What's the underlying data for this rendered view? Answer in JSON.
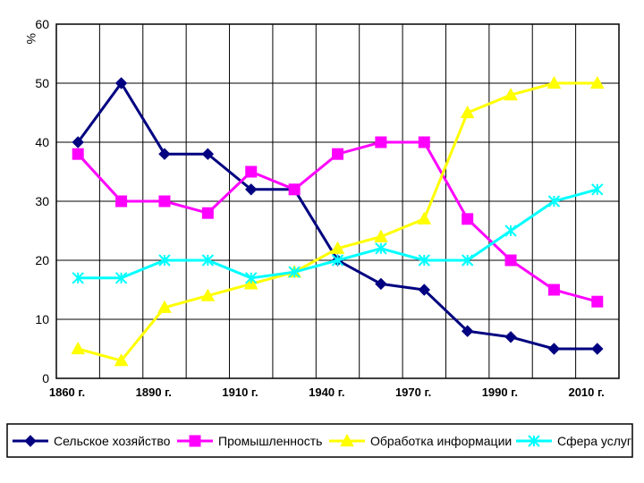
{
  "chart_data": {
    "type": "line",
    "ylabel": "%",
    "ylim": [
      0,
      60
    ],
    "yticks": [
      0,
      10,
      20,
      30,
      40,
      50,
      60
    ],
    "grid": true,
    "legend_position": "bottom",
    "x": [
      1860,
      1875,
      1890,
      1900,
      1910,
      1925,
      1940,
      1955,
      1970,
      1980,
      1990,
      2000,
      2010
    ],
    "xtick_labels": [
      "1860 г.",
      "",
      "1890 г.",
      "",
      "1910 г.",
      "",
      "1940 г.",
      "",
      "1970 г.",
      "",
      "1990 г.",
      "",
      "2010 г."
    ],
    "series": [
      {
        "name": "Сельское хозяйство",
        "color": "#000080",
        "marker": "diamond",
        "values": [
          40,
          50,
          38,
          38,
          32,
          32,
          20,
          16,
          15,
          8,
          7,
          5,
          5
        ]
      },
      {
        "name": "Промышленность",
        "color": "#ff00ff",
        "marker": "square",
        "values": [
          38,
          30,
          30,
          28,
          35,
          32,
          38,
          40,
          40,
          27,
          20,
          15,
          13
        ]
      },
      {
        "name": "Обработка информации",
        "color": "#ffff00",
        "marker": "triangle",
        "values": [
          5,
          3,
          12,
          14,
          16,
          18,
          22,
          24,
          27,
          45,
          48,
          50,
          50
        ]
      },
      {
        "name": "Сфера услуг",
        "color": "#00ffff",
        "marker": "star",
        "values": [
          17,
          17,
          20,
          20,
          17,
          18,
          20,
          22,
          20,
          20,
          25,
          30,
          32
        ]
      }
    ]
  }
}
